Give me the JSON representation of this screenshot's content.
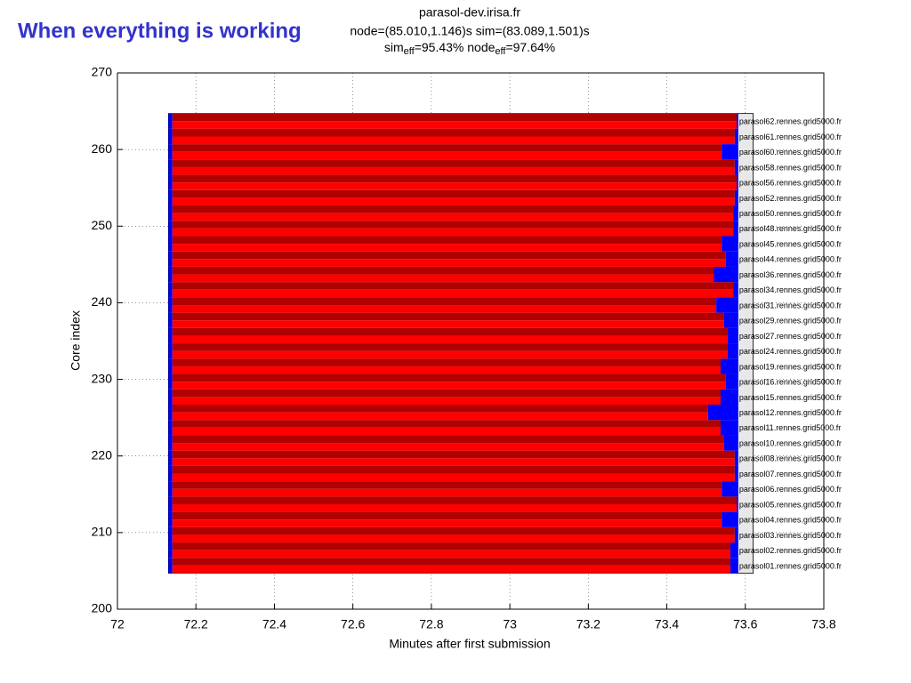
{
  "header": "When everything is working",
  "chart_data": {
    "type": "gantt",
    "title_lines": [
      "parasol-dev.irisa.fr",
      "node=(85.010,1.146)s sim=(83.089,1.501)s"
    ],
    "efficiency": [
      "sim",
      "eff",
      "=95.43% node",
      "eff",
      "=97.64%"
    ],
    "xlabel": "Minutes after first submission",
    "ylabel": "Core index",
    "xlim": [
      72,
      73.8
    ],
    "ylim": [
      200,
      270
    ],
    "xticks": [
      72,
      72.2,
      72.4,
      72.6,
      72.8,
      73,
      73.2,
      73.4,
      73.6,
      73.8
    ],
    "yticks": [
      200,
      210,
      220,
      230,
      240,
      250,
      260,
      270
    ],
    "grid": true,
    "frame": {
      "x": [
        72.13,
        73.62
      ],
      "y": [
        204.7,
        264.7
      ]
    },
    "colors": {
      "core_a": "#b00000",
      "core_b": "#ff0000",
      "idle": "#0000ff",
      "frame": "#e8e8e8"
    },
    "hosts": [
      {
        "name": "parasol01.rennes.grid5000.fr",
        "y": 205.7,
        "start": 72.13,
        "red_start": 72.14,
        "red_end": 73.562,
        "end": 73.582
      },
      {
        "name": "parasol02.rennes.grid5000.fr",
        "y": 207.7,
        "start": 72.13,
        "red_start": 72.14,
        "red_end": 73.562,
        "end": 73.582
      },
      {
        "name": "parasol03.rennes.grid5000.fr",
        "y": 209.7,
        "start": 72.13,
        "red_start": 72.14,
        "red_end": 73.573,
        "end": 73.582
      },
      {
        "name": "parasol04.rennes.grid5000.fr",
        "y": 211.7,
        "start": 72.13,
        "red_start": 72.14,
        "red_end": 73.54,
        "end": 73.582
      },
      {
        "name": "parasol05.rennes.grid5000.fr",
        "y": 213.7,
        "start": 72.13,
        "red_start": 72.14,
        "red_end": 73.578,
        "end": 73.582
      },
      {
        "name": "parasol06.rennes.grid5000.fr",
        "y": 215.7,
        "start": 72.13,
        "red_start": 72.14,
        "red_end": 73.54,
        "end": 73.582
      },
      {
        "name": "parasol07.rennes.grid5000.fr",
        "y": 217.7,
        "start": 72.13,
        "red_start": 72.14,
        "red_end": 73.573,
        "end": 73.582
      },
      {
        "name": "parasol08.rennes.grid5000.fr",
        "y": 219.7,
        "start": 72.13,
        "red_start": 72.14,
        "red_end": 73.573,
        "end": 73.582
      },
      {
        "name": "parasol10.rennes.grid5000.fr",
        "y": 221.7,
        "start": 72.13,
        "red_start": 72.14,
        "red_end": 73.546,
        "end": 73.582
      },
      {
        "name": "parasol11.rennes.grid5000.fr",
        "y": 223.7,
        "start": 72.13,
        "red_start": 72.14,
        "red_end": 73.537,
        "end": 73.582
      },
      {
        "name": "parasol12.rennes.grid5000.fr",
        "y": 225.7,
        "start": 72.13,
        "red_start": 72.14,
        "red_end": 73.505,
        "end": 73.582
      },
      {
        "name": "parasol15.rennes.grid5000.fr",
        "y": 227.7,
        "start": 72.13,
        "red_start": 72.14,
        "red_end": 73.537,
        "end": 73.582
      },
      {
        "name": "parasol16.rennes.grid5000.fr",
        "y": 229.7,
        "start": 72.13,
        "red_start": 72.14,
        "red_end": 73.55,
        "end": 73.582
      },
      {
        "name": "parasol19.rennes.grid5000.fr",
        "y": 231.7,
        "start": 72.13,
        "red_start": 72.14,
        "red_end": 73.537,
        "end": 73.582
      },
      {
        "name": "parasol24.rennes.grid5000.fr",
        "y": 233.7,
        "start": 72.13,
        "red_start": 72.14,
        "red_end": 73.555,
        "end": 73.582
      },
      {
        "name": "parasol27.rennes.grid5000.fr",
        "y": 235.7,
        "start": 72.13,
        "red_start": 72.14,
        "red_end": 73.555,
        "end": 73.582
      },
      {
        "name": "parasol29.rennes.grid5000.fr",
        "y": 237.7,
        "start": 72.13,
        "red_start": 72.14,
        "red_end": 73.546,
        "end": 73.582
      },
      {
        "name": "parasol31.rennes.grid5000.fr",
        "y": 239.7,
        "start": 72.13,
        "red_start": 72.14,
        "red_end": 73.526,
        "end": 73.582
      },
      {
        "name": "parasol34.rennes.grid5000.fr",
        "y": 241.7,
        "start": 72.13,
        "red_start": 72.14,
        "red_end": 73.569,
        "end": 73.582
      },
      {
        "name": "parasol36.rennes.grid5000.fr",
        "y": 243.7,
        "start": 72.13,
        "red_start": 72.14,
        "red_end": 73.52,
        "end": 73.582
      },
      {
        "name": "parasol44.rennes.grid5000.fr",
        "y": 245.7,
        "start": 72.13,
        "red_start": 72.14,
        "red_end": 73.55,
        "end": 73.582
      },
      {
        "name": "parasol45.rennes.grid5000.fr",
        "y": 247.7,
        "start": 72.13,
        "red_start": 72.14,
        "red_end": 73.54,
        "end": 73.582
      },
      {
        "name": "parasol48.rennes.grid5000.fr",
        "y": 249.7,
        "start": 72.13,
        "red_start": 72.14,
        "red_end": 73.569,
        "end": 73.582
      },
      {
        "name": "parasol50.rennes.grid5000.fr",
        "y": 251.7,
        "start": 72.13,
        "red_start": 72.14,
        "red_end": 73.569,
        "end": 73.582
      },
      {
        "name": "parasol52.rennes.grid5000.fr",
        "y": 253.7,
        "start": 72.13,
        "red_start": 72.14,
        "red_end": 73.573,
        "end": 73.582
      },
      {
        "name": "parasol56.rennes.grid5000.fr",
        "y": 255.7,
        "start": 72.13,
        "red_start": 72.14,
        "red_end": 73.578,
        "end": 73.582
      },
      {
        "name": "parasol58.rennes.grid5000.fr",
        "y": 257.7,
        "start": 72.13,
        "red_start": 72.14,
        "red_end": 73.573,
        "end": 73.582
      },
      {
        "name": "parasol60.rennes.grid5000.fr",
        "y": 259.7,
        "start": 72.13,
        "red_start": 72.14,
        "red_end": 73.54,
        "end": 73.582
      },
      {
        "name": "parasol61.rennes.grid5000.fr",
        "y": 261.7,
        "start": 72.13,
        "red_start": 72.14,
        "red_end": 73.573,
        "end": 73.582
      },
      {
        "name": "parasol62.rennes.grid5000.fr",
        "y": 263.7,
        "start": 72.13,
        "red_start": 72.14,
        "red_end": 73.578,
        "end": 73.582
      }
    ]
  }
}
